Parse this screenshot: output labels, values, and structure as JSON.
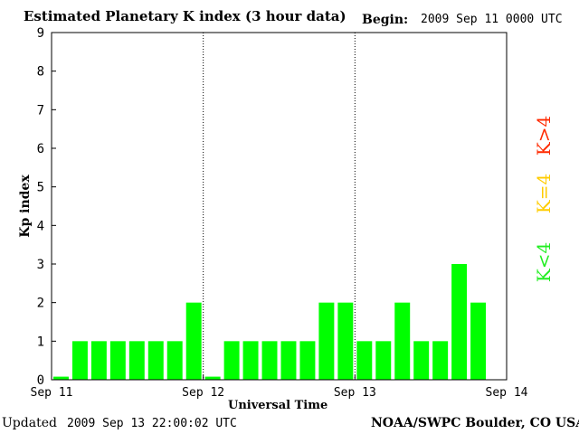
{
  "header": {
    "title": "Estimated Planetary K index (3 hour data)",
    "begin_label": "Begin:",
    "begin_value": "2009 Sep 11 0000 UTC"
  },
  "footer": {
    "updated_label": "Updated",
    "updated_value": "2009 Sep 13 22:00:02 UTC",
    "credit": "NOAA/SWPC Boulder, CO USA"
  },
  "legend": {
    "greater": "K>4",
    "equal": "K=4",
    "less": "K<4"
  },
  "colors": {
    "bar_low": "#00ff00",
    "bar_mid": "#ffff00",
    "bar_high": "#ff0000",
    "legend_high": "#ff2a00",
    "legend_mid": "#ffcc00",
    "legend_low": "#22ee22"
  },
  "chart_data": {
    "type": "bar",
    "title": "Estimated Planetary K index (3 hour data)",
    "xlabel": "Universal Time",
    "ylabel": "Kp index",
    "ylim": [
      0,
      9
    ],
    "yticks": [
      "0",
      "1",
      "2",
      "3",
      "4",
      "5",
      "6",
      "7",
      "8",
      "9"
    ],
    "xticks": [
      "Sep 11",
      "Sep 12",
      "Sep 13",
      "Sep 14"
    ],
    "interval_hours": 3,
    "values": [
      0,
      1,
      1,
      1,
      1,
      1,
      1,
      2,
      0,
      1,
      1,
      1,
      1,
      1,
      2,
      2,
      1,
      1,
      2,
      1,
      1,
      3,
      2
    ],
    "grid": false,
    "day_separators": "dotted"
  }
}
